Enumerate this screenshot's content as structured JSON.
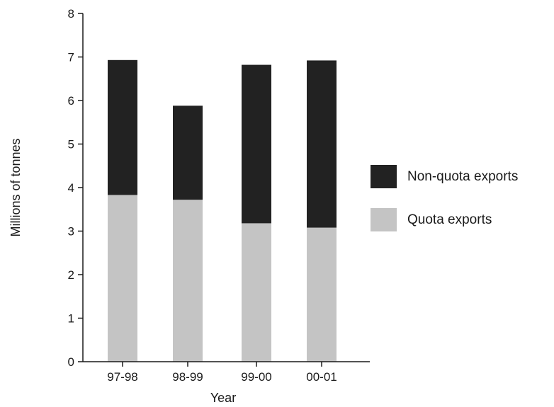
{
  "chart_data": {
    "type": "bar",
    "stacked": true,
    "categories": [
      "97-98",
      "98-99",
      "99-00",
      "00-01"
    ],
    "series": [
      {
        "name": "Quota exports",
        "values": [
          3.83,
          3.72,
          3.18,
          3.08
        ],
        "color": "#c4c4c4"
      },
      {
        "name": "Non-quota exports",
        "values": [
          3.1,
          2.16,
          3.64,
          3.84
        ],
        "color": "#222222"
      }
    ],
    "xlabel": "Year",
    "ylabel": "Millions of tonnes",
    "ylim": [
      0,
      8
    ],
    "yticks": [
      "0",
      "1",
      "2",
      "3",
      "4",
      "5",
      "6",
      "7",
      "8"
    ],
    "grid": false,
    "legend": {
      "position": "right",
      "order": [
        "Non-quota exports",
        "Quota exports"
      ]
    }
  }
}
